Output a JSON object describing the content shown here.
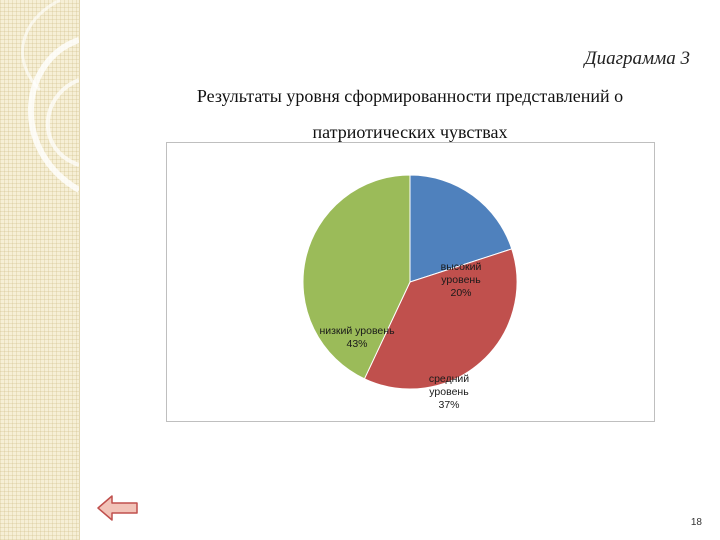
{
  "diagram_label": "Диаграмма 3",
  "page_number": "18",
  "nav": {
    "back_icon": "left-arrow-icon"
  },
  "chart_data": {
    "type": "pie",
    "title_line1": "Результаты уровня сформированности представлений о",
    "title_line2": "патриотических чувствах",
    "slices": [
      {
        "label_lines": [
          "высокий",
          "уровень"
        ],
        "value": 20,
        "value_label": "20%",
        "color": "#4f81bd"
      },
      {
        "label_lines": [
          "средний",
          "уровень"
        ],
        "value": 37,
        "value_label": "37%",
        "color": "#c0504d"
      },
      {
        "label_lines": [
          "низкий уровень"
        ],
        "value": 43,
        "value_label": "43%",
        "color": "#9bbb59"
      }
    ]
  }
}
